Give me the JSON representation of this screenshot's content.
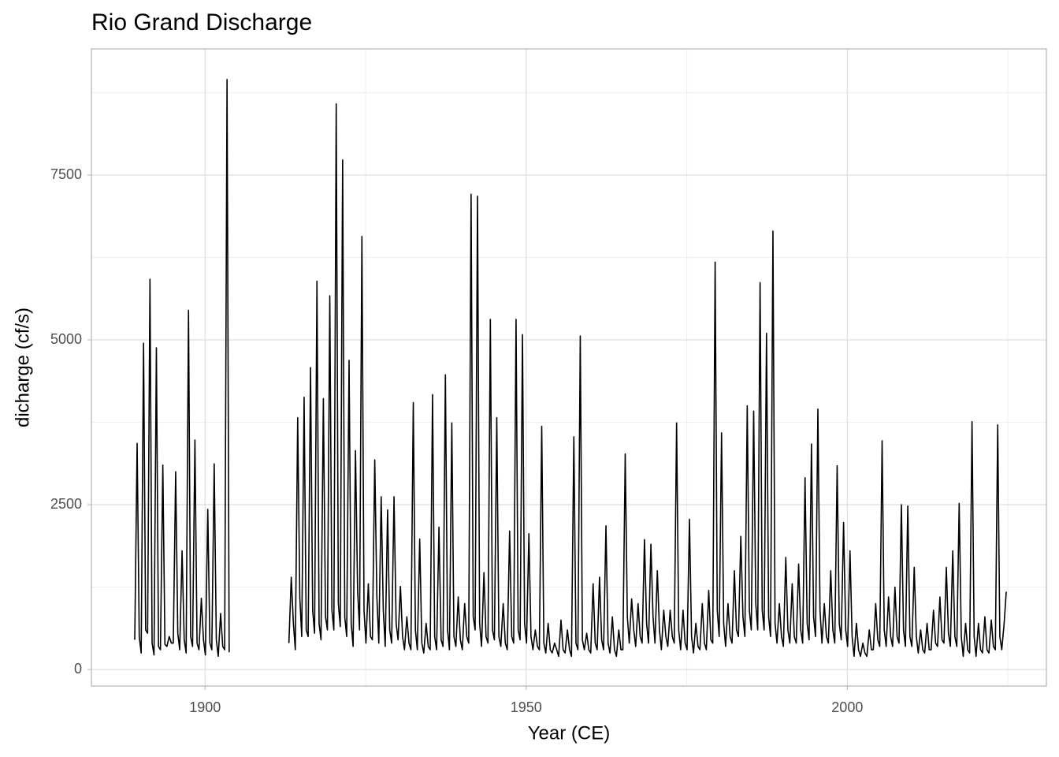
{
  "chart_data": {
    "type": "line",
    "title": "Rio Grand Discharge",
    "x_label": "Year (CE)",
    "y_label": "dicharge (cf/s)",
    "color": "#000000",
    "grid": true,
    "xlim": [
      1882.3,
      2031.0
    ],
    "xticks": [
      1900,
      1950,
      2000
    ],
    "xminor": [
      1925,
      1975,
      2025
    ],
    "ylim": [
      -251,
      9414
    ],
    "yticks": [
      0,
      2500,
      5000,
      7500
    ],
    "yminor": [
      1250,
      3750,
      6250,
      8750
    ],
    "x": [
      1889.05,
      1889.42,
      1889.75,
      1890.05,
      1890.42,
      1890.75,
      1891.05,
      1891.42,
      1891.75,
      1892.05,
      1892.42,
      1892.75,
      1893.05,
      1893.42,
      1893.75,
      1894.05,
      1894.42,
      1894.75,
      1895.05,
      1895.42,
      1895.75,
      1896.05,
      1896.42,
      1896.75,
      1897.05,
      1897.42,
      1897.75,
      1898.05,
      1898.42,
      1898.75,
      1899.05,
      1899.42,
      1899.75,
      1900.05,
      1900.42,
      1900.75,
      1901.05,
      1901.42,
      1901.75,
      1902.05,
      1902.42,
      1902.75,
      1903.05,
      1903.42,
      1903.75,
      null,
      1913.05,
      1913.42,
      1913.75,
      1914.05,
      1914.42,
      1914.75,
      1915.05,
      1915.42,
      1915.75,
      1916.05,
      1916.42,
      1916.75,
      1917.05,
      1917.42,
      1917.75,
      1918.05,
      1918.42,
      1918.75,
      1919.05,
      1919.42,
      1919.75,
      1920.05,
      1920.42,
      1920.75,
      1921.05,
      1921.42,
      1921.75,
      1922.05,
      1922.42,
      1922.75,
      1923.05,
      1923.42,
      1923.75,
      1924.05,
      1924.42,
      1924.75,
      1925.05,
      1925.42,
      1925.75,
      1926.05,
      1926.42,
      1926.75,
      1927.05,
      1927.42,
      1927.75,
      1928.05,
      1928.42,
      1928.75,
      1929.05,
      1929.42,
      1929.75,
      1930.05,
      1930.42,
      1930.75,
      1931.05,
      1931.42,
      1931.75,
      1932.05,
      1932.42,
      1932.75,
      1933.05,
      1933.42,
      1933.75,
      1934.05,
      1934.42,
      1934.75,
      1935.05,
      1935.42,
      1935.75,
      1936.05,
      1936.42,
      1936.75,
      1937.05,
      1937.42,
      1937.75,
      1938.05,
      1938.42,
      1938.75,
      1939.05,
      1939.42,
      1939.75,
      1940.05,
      1940.42,
      1940.75,
      1941.05,
      1941.42,
      1941.75,
      1942.05,
      1942.42,
      1942.75,
      1943.05,
      1943.42,
      1943.75,
      1944.05,
      1944.42,
      1944.75,
      1945.05,
      1945.42,
      1945.75,
      1946.05,
      1946.42,
      1946.75,
      1947.05,
      1947.42,
      1947.75,
      1948.05,
      1948.42,
      1948.75,
      1949.05,
      1949.42,
      1949.75,
      1950.05,
      1950.42,
      1950.75,
      1951.05,
      1951.42,
      1951.75,
      1952.05,
      1952.42,
      1952.75,
      1953.05,
      1953.42,
      1953.75,
      1954.05,
      1954.42,
      1954.75,
      1955.05,
      1955.42,
      1955.75,
      1956.05,
      1956.42,
      1956.75,
      1957.05,
      1957.42,
      1957.75,
      1958.05,
      1958.42,
      1958.75,
      1959.05,
      1959.42,
      1959.75,
      1960.05,
      1960.42,
      1960.75,
      1961.05,
      1961.42,
      1961.75,
      1962.05,
      1962.42,
      1962.75,
      1963.05,
      1963.42,
      1963.75,
      1964.05,
      1964.42,
      1964.75,
      1965.05,
      1965.42,
      1965.75,
      1966.05,
      1966.42,
      1966.75,
      1967.05,
      1967.42,
      1967.75,
      1968.05,
      1968.42,
      1968.75,
      1969.05,
      1969.42,
      1969.75,
      1970.05,
      1970.42,
      1970.75,
      1971.05,
      1971.42,
      1971.75,
      1972.05,
      1972.42,
      1972.75,
      1973.05,
      1973.42,
      1973.75,
      1974.05,
      1974.42,
      1974.75,
      1975.05,
      1975.42,
      1975.75,
      1976.05,
      1976.42,
      1976.75,
      1977.05,
      1977.42,
      1977.75,
      1978.05,
      1978.42,
      1978.75,
      1979.05,
      1979.42,
      1979.75,
      1980.05,
      1980.42,
      1980.75,
      1981.05,
      1981.42,
      1981.75,
      1982.05,
      1982.42,
      1982.75,
      1983.05,
      1983.42,
      1983.75,
      1984.05,
      1984.42,
      1984.75,
      1985.05,
      1985.42,
      1985.75,
      1986.05,
      1986.42,
      1986.75,
      1987.05,
      1987.42,
      1987.75,
      1988.05,
      1988.42,
      1988.75,
      1989.05,
      1989.42,
      1989.75,
      1990.05,
      1990.42,
      1990.75,
      1991.05,
      1991.42,
      1991.75,
      1992.05,
      1992.42,
      1992.75,
      1993.05,
      1993.42,
      1993.75,
      1994.05,
      1994.42,
      1994.75,
      1995.05,
      1995.42,
      1995.75,
      1996.05,
      1996.42,
      1996.75,
      1997.05,
      1997.42,
      1997.75,
      1998.05,
      1998.42,
      1998.75,
      1999.05,
      1999.42,
      1999.75,
      2000.05,
      2000.42,
      2000.75,
      2001.05,
      2001.42,
      2001.75,
      2002.05,
      2002.42,
      2002.75,
      2003.05,
      2003.42,
      2003.75,
      2004.05,
      2004.42,
      2004.75,
      2005.05,
      2005.42,
      2005.75,
      2006.05,
      2006.42,
      2006.75,
      2007.05,
      2007.42,
      2007.75,
      2008.05,
      2008.42,
      2008.75,
      2009.05,
      2009.42,
      2009.75,
      2010.05,
      2010.42,
      2010.75,
      2011.05,
      2011.42,
      2011.75,
      2012.05,
      2012.42,
      2012.75,
      2013.05,
      2013.42,
      2013.75,
      2014.05,
      2014.42,
      2014.75,
      2015.05,
      2015.42,
      2015.75,
      2016.05,
      2016.42,
      2016.75,
      2017.05,
      2017.42,
      2017.75,
      2018.05,
      2018.42,
      2018.75,
      2019.05,
      2019.42,
      2019.75,
      2020.05,
      2020.42,
      2020.75,
      2021.05,
      2021.42,
      2021.75,
      2022.05,
      2022.42,
      2022.75,
      2023.05,
      2023.42,
      2023.75,
      2024.05,
      2024.42,
      2024.75
    ],
    "values": [
      450,
      3430,
      500,
      250,
      4950,
      600,
      550,
      5920,
      400,
      220,
      4880,
      350,
      300,
      3100,
      380,
      350,
      500,
      400,
      400,
      3000,
      550,
      300,
      1800,
      450,
      250,
      5450,
      500,
      350,
      3480,
      400,
      300,
      1080,
      450,
      220,
      2430,
      400,
      300,
      3120,
      450,
      200,
      850,
      350,
      300,
      8950,
      260,
      null,
      400,
      1400,
      700,
      300,
      3820,
      1100,
      500,
      4130,
      600,
      500,
      4580,
      900,
      550,
      5890,
      700,
      450,
      4110,
      800,
      600,
      5670,
      900,
      600,
      8580,
      1000,
      650,
      7730,
      800,
      500,
      4690,
      700,
      350,
      3320,
      1200,
      600,
      6570,
      900,
      400,
      1300,
      500,
      450,
      3180,
      1100,
      400,
      2620,
      900,
      350,
      2420,
      600,
      400,
      2620,
      700,
      450,
      1260,
      500,
      300,
      800,
      400,
      300,
      4050,
      600,
      300,
      1980,
      400,
      250,
      700,
      350,
      300,
      4170,
      500,
      300,
      2160,
      450,
      350,
      4470,
      600,
      300,
      3740,
      500,
      350,
      1100,
      450,
      300,
      1000,
      500,
      400,
      7210,
      800,
      600,
      7180,
      700,
      350,
      1470,
      500,
      400,
      5310,
      600,
      450,
      3820,
      500,
      350,
      1000,
      400,
      300,
      2100,
      500,
      400,
      5310,
      600,
      450,
      5080,
      700,
      400,
      2060,
      500,
      300,
      600,
      350,
      300,
      3690,
      400,
      250,
      700,
      300,
      250,
      400,
      300,
      200,
      750,
      300,
      250,
      600,
      300,
      200,
      3530,
      400,
      300,
      5060,
      450,
      300,
      550,
      300,
      250,
      1300,
      400,
      300,
      1400,
      450,
      300,
      2180,
      400,
      250,
      800,
      300,
      200,
      600,
      300,
      300,
      3270,
      800,
      400,
      1070,
      600,
      350,
      1000,
      500,
      400,
      1970,
      700,
      400,
      1900,
      800,
      400,
      1500,
      600,
      300,
      900,
      500,
      350,
      900,
      500,
      400,
      3740,
      600,
      300,
      900,
      400,
      300,
      2280,
      500,
      250,
      700,
      350,
      300,
      1000,
      400,
      300,
      1200,
      450,
      400,
      6180,
      900,
      500,
      3590,
      700,
      350,
      1000,
      500,
      400,
      1500,
      600,
      500,
      2020,
      800,
      500,
      4000,
      900,
      600,
      3920,
      1000,
      600,
      5870,
      900,
      600,
      5100,
      800,
      500,
      6650,
      700,
      400,
      1000,
      500,
      350,
      1700,
      600,
      400,
      1300,
      500,
      400,
      1600,
      600,
      400,
      2910,
      700,
      450,
      3420,
      800,
      500,
      3950,
      900,
      400,
      1000,
      500,
      400,
      1500,
      600,
      400,
      3090,
      700,
      450,
      2230,
      600,
      350,
      1800,
      500,
      200,
      700,
      300,
      200,
      400,
      250,
      200,
      600,
      300,
      300,
      1000,
      450,
      350,
      3470,
      600,
      350,
      1100,
      500,
      350,
      1250,
      500,
      400,
      2500,
      600,
      350,
      2480,
      500,
      350,
      1550,
      500,
      250,
      600,
      300,
      250,
      700,
      300,
      300,
      900,
      400,
      350,
      1100,
      450,
      400,
      1550,
      550,
      350,
      1800,
      500,
      350,
      2520,
      500,
      200,
      700,
      300,
      250,
      3760,
      500,
      200,
      700,
      300,
      250,
      800,
      300,
      250,
      750,
      350,
      300,
      3710,
      500,
      300,
      700,
      1180
    ]
  }
}
